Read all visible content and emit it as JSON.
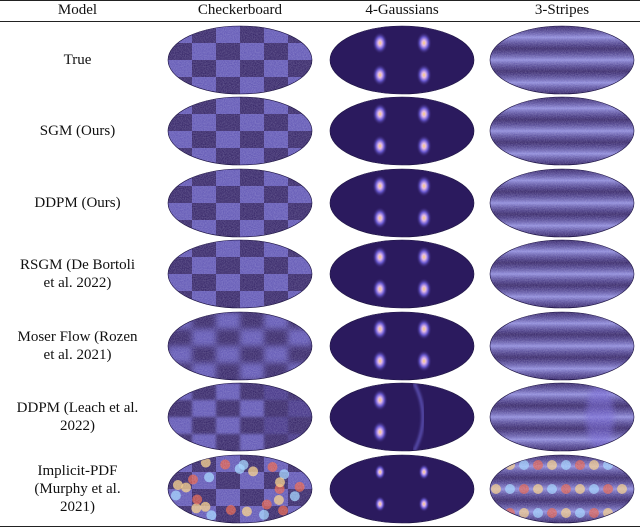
{
  "header": {
    "model_label": "Model",
    "columns": [
      "Checkerboard",
      "4-Gaussians",
      "3-Stripes"
    ]
  },
  "rows": [
    {
      "label": "True"
    },
    {
      "label": "SGM (Ours)"
    },
    {
      "label": "DDPM (Ours)"
    },
    {
      "label": "RSGM (De Bortoli\net al. 2022)"
    },
    {
      "label": "Moser Flow (Rozen\net al. 2021)"
    },
    {
      "label": "DDPM (Leach et al.\n2022)"
    },
    {
      "label": "Implicit-PDF\n(Murphy et al.\n2021)"
    }
  ],
  "colors": {
    "background": "#2b1a5e",
    "light": "#5a4fb0",
    "peak": "#ffd27a",
    "hot": "#e8553a"
  }
}
